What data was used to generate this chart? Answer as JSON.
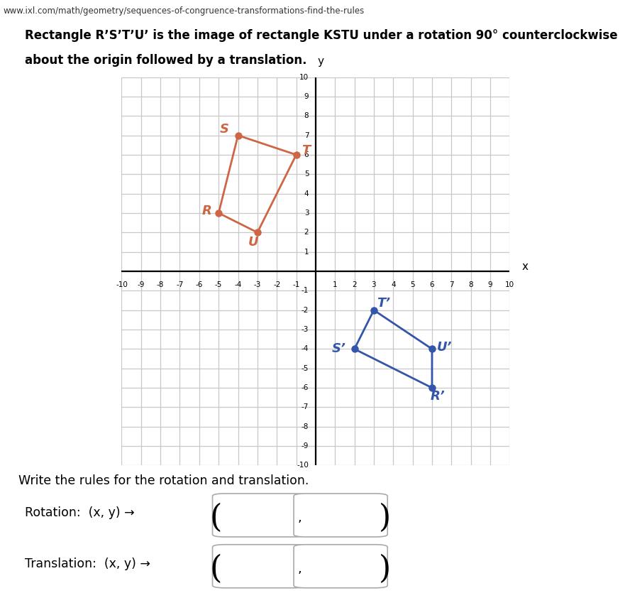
{
  "url_text": "www.ixl.com/math/geometry/sequences-of-congruence-transformations-find-the-rules",
  "header_line1": "Rectangle R’S’T’U’ is the image of rectangle KSTU under a rotation 90° counterclockwise",
  "header_line2": "about the origin followed by a translation.",
  "xlim": [
    -10,
    10
  ],
  "ylim": [
    -10,
    10
  ],
  "grid_color": "#c8c8c8",
  "bg_color": "#e8e8e8",
  "orange_vertices": [
    [
      -5,
      3
    ],
    [
      -4,
      7
    ],
    [
      -1,
      6
    ],
    [
      -3,
      2
    ]
  ],
  "orange_labels": [
    [
      "R",
      -5.6,
      3.1
    ],
    [
      "S",
      -4.7,
      7.3
    ],
    [
      "T",
      -0.5,
      6.2
    ],
    [
      "U",
      -3.2,
      1.5
    ]
  ],
  "orange_color": "#cc6644",
  "blue_vertices": [
    [
      3,
      -2
    ],
    [
      2,
      -4
    ],
    [
      6,
      -6
    ],
    [
      6,
      -4
    ]
  ],
  "blue_labels": [
    [
      "T’",
      3.5,
      -1.65
    ],
    [
      "S’",
      1.2,
      -4.0
    ],
    [
      "R’",
      6.3,
      -6.45
    ],
    [
      "U’",
      6.65,
      -3.9
    ]
  ],
  "blue_color": "#3355aa",
  "write_rules_text": "Write the rules for the rotation and translation.",
  "rotation_label": "Rotation:  (x, y) →",
  "translation_label": "Translation:  (x, y) →"
}
